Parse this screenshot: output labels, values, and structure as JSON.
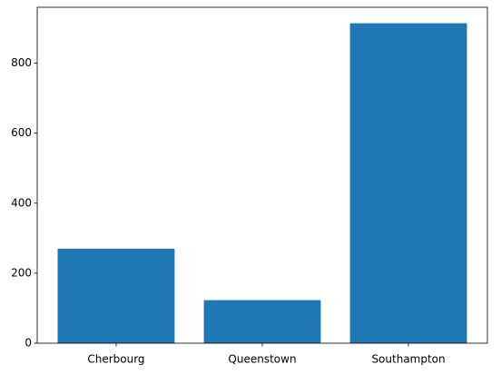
{
  "chart_data": {
    "type": "bar",
    "categories": [
      "Cherbourg",
      "Queenstown",
      "Southampton"
    ],
    "values": [
      270,
      123,
      914
    ],
    "color": "#1f77b4",
    "ylim": [
      0,
      959.7
    ],
    "yticks": [
      0,
      200,
      400,
      600,
      800
    ]
  }
}
